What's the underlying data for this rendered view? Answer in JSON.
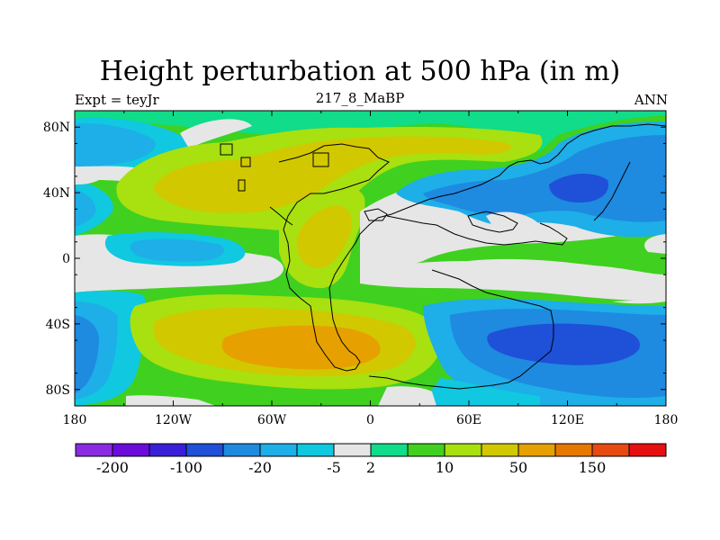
{
  "title": "Height perturbation at 500 hPa (in m)",
  "left_label": "Expt = teyJr",
  "center_label": "217_8_MaBP",
  "right_label": "ANN",
  "map": {
    "lon_range": [
      -180,
      180
    ],
    "lat_range": [
      -90,
      90
    ],
    "lat_ticks": [
      {
        "value": 80,
        "label": "80N"
      },
      {
        "value": 40,
        "label": "40N"
      },
      {
        "value": 0,
        "label": "0"
      },
      {
        "value": -40,
        "label": "40S"
      },
      {
        "value": -80,
        "label": "80S"
      }
    ],
    "lon_ticks": [
      {
        "value": -180,
        "label": "180"
      },
      {
        "value": -120,
        "label": "120W"
      },
      {
        "value": -60,
        "label": "60W"
      },
      {
        "value": 0,
        "label": "0"
      },
      {
        "value": 60,
        "label": "60E"
      },
      {
        "value": 120,
        "label": "120E"
      },
      {
        "value": 180,
        "label": "180"
      }
    ]
  },
  "colorbar": {
    "colors": [
      "#8a2be2",
      "#6a0ddb",
      "#3a1fd8",
      "#1e50d8",
      "#1e8ae0",
      "#1eaee8",
      "#10c8e0",
      "#e6e6e6",
      "#10dc8a",
      "#40d020",
      "#a8e010",
      "#d2c800",
      "#e6a000",
      "#e67800",
      "#e64a10",
      "#e61010"
    ],
    "labels": [
      {
        "index": 1,
        "text": "-200"
      },
      {
        "index": 3,
        "text": "-100"
      },
      {
        "index": 5,
        "text": "-20"
      },
      {
        "index": 7,
        "text": "-5"
      },
      {
        "index": 8,
        "text": "2"
      },
      {
        "index": 10,
        "text": "10"
      },
      {
        "index": 12,
        "text": "50"
      },
      {
        "index": 14,
        "text": "150"
      }
    ]
  }
}
